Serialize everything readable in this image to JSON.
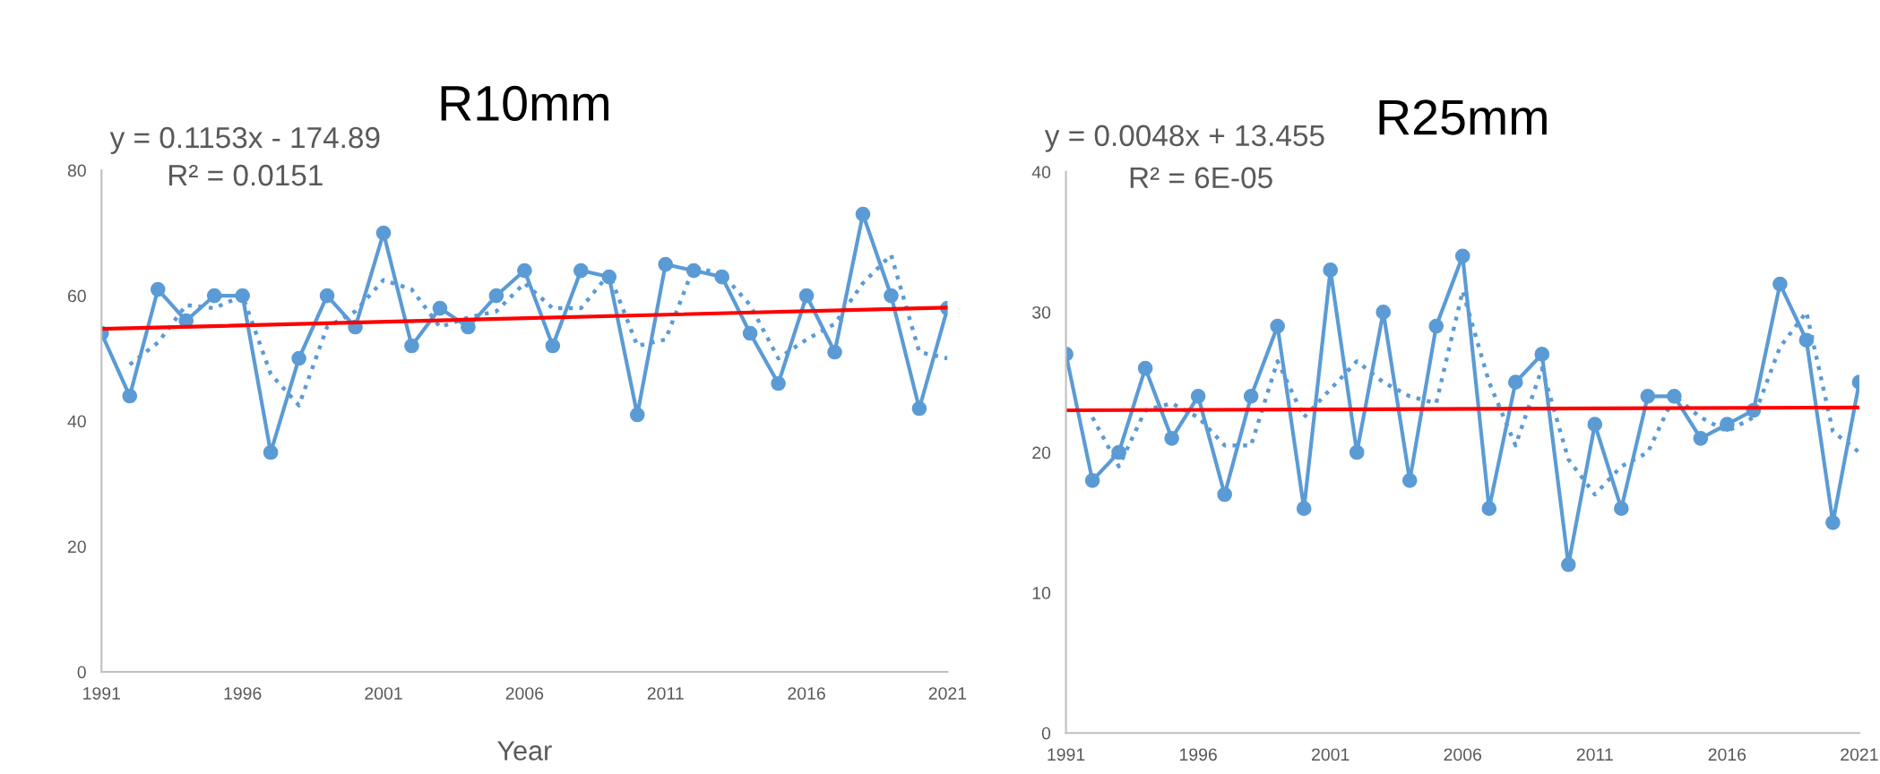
{
  "chart_data": [
    {
      "type": "line",
      "title": "R10mm",
      "xlabel": "Year",
      "xlim": [
        1991,
        2021
      ],
      "xticks": [
        1991,
        1996,
        2001,
        2006,
        2011,
        2016,
        2021
      ],
      "ylim": [
        0,
        80
      ],
      "yticks": [
        0,
        20,
        40,
        60,
        80
      ],
      "grid": false,
      "legend": false,
      "x": [
        1991,
        1992,
        1993,
        1994,
        1995,
        1996,
        1997,
        1998,
        1999,
        2000,
        2001,
        2002,
        2003,
        2004,
        2005,
        2006,
        2007,
        2008,
        2009,
        2010,
        2011,
        2012,
        2013,
        2014,
        2015,
        2016,
        2017,
        2018,
        2019,
        2020,
        2021
      ],
      "series": [
        {
          "color": "#5b9bd5",
          "marker": "circle",
          "line_style": "solid",
          "values": [
            54,
            44,
            61,
            56,
            60,
            60,
            35,
            50,
            60,
            55,
            70,
            52,
            58,
            55,
            60,
            64,
            52,
            64,
            63,
            41,
            65,
            64,
            63,
            54,
            46,
            60,
            51,
            73,
            60,
            42,
            58
          ]
        },
        {
          "color": "#5b9bd5",
          "marker": "none",
          "line_style": "dotted",
          "x": [
            1992,
            1993,
            1994,
            1995,
            1996,
            1997,
            1998,
            1999,
            2000,
            2001,
            2002,
            2003,
            2004,
            2005,
            2006,
            2007,
            2008,
            2009,
            2010,
            2011,
            2012,
            2013,
            2014,
            2015,
            2016,
            2017,
            2018,
            2019,
            2020,
            2021
          ],
          "values": [
            49,
            52.5,
            58.5,
            58,
            60,
            47.5,
            42.5,
            55,
            57.5,
            62.5,
            61,
            55,
            56.5,
            57.5,
            62,
            58,
            58,
            63.5,
            52,
            53,
            64.5,
            63.5,
            58.5,
            50,
            53,
            55.5,
            62,
            66.5,
            51,
            50
          ]
        },
        {
          "color": "#ff0000",
          "marker": "none",
          "line_style": "solid",
          "x": [
            1991,
            2021
          ],
          "values": [
            54.7,
            58.1
          ]
        }
      ],
      "annotations": [
        "y = 0.1153x - 174.89",
        "R² = 0.0151"
      ]
    },
    {
      "type": "line",
      "title": "R25mm",
      "xlim": [
        1991,
        2021
      ],
      "xticks": [
        1991,
        1996,
        2001,
        2006,
        2011,
        2016,
        2021
      ],
      "ylim": [
        0,
        40
      ],
      "yticks": [
        0,
        10,
        20,
        30,
        40
      ],
      "grid": false,
      "legend": false,
      "x": [
        1991,
        1992,
        1993,
        1994,
        1995,
        1996,
        1997,
        1998,
        1999,
        2000,
        2001,
        2002,
        2003,
        2004,
        2005,
        2006,
        2007,
        2008,
        2009,
        2010,
        2011,
        2012,
        2013,
        2014,
        2015,
        2016,
        2017,
        2018,
        2019,
        2020,
        2021
      ],
      "series": [
        {
          "color": "#5b9bd5",
          "marker": "circle",
          "line_style": "solid",
          "values": [
            27,
            18,
            20,
            26,
            21,
            24,
            17,
            24,
            29,
            16,
            33,
            20,
            30,
            18,
            29,
            34,
            16,
            25,
            27,
            12,
            22,
            16,
            24,
            24,
            21,
            22,
            23,
            32,
            28,
            15,
            25
          ]
        },
        {
          "color": "#5b9bd5",
          "marker": "none",
          "line_style": "dotted",
          "x": [
            1992,
            1993,
            1994,
            1995,
            1996,
            1997,
            1998,
            1999,
            2000,
            2001,
            2002,
            2003,
            2004,
            2005,
            2006,
            2007,
            2008,
            2009,
            2010,
            2011,
            2012,
            2013,
            2014,
            2015,
            2016,
            2017,
            2018,
            2019,
            2020,
            2021
          ],
          "values": [
            22.5,
            19,
            23,
            23.5,
            22.5,
            20.5,
            20.5,
            26.5,
            22.5,
            24.5,
            26.5,
            25,
            24,
            23.5,
            31.5,
            25,
            20.5,
            26,
            19.5,
            17,
            19,
            20,
            24,
            22.5,
            21.5,
            22.5,
            27.5,
            30,
            21.5,
            20
          ]
        },
        {
          "color": "#ff0000",
          "marker": "none",
          "line_style": "solid",
          "x": [
            1991,
            2021
          ],
          "values": [
            23.0,
            23.2
          ]
        }
      ],
      "annotations": [
        "y = 0.0048x + 13.455",
        "R² = 6E-05"
      ]
    }
  ]
}
